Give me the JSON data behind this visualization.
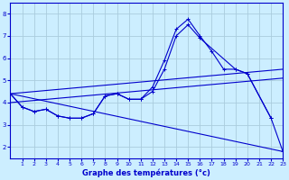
{
  "title": "Graphe des températures (°c)",
  "background_color": "#cceeff",
  "grid_color": "#aaccdd",
  "line_color": "#0000cc",
  "xlim": [
    0,
    23
  ],
  "ylim": [
    1.5,
    8.5
  ],
  "yticks": [
    2,
    3,
    4,
    5,
    6,
    7,
    8
  ],
  "xticks": [
    1,
    2,
    3,
    4,
    5,
    6,
    7,
    8,
    9,
    10,
    11,
    12,
    13,
    14,
    15,
    16,
    17,
    18,
    19,
    20,
    21,
    22,
    23
  ],
  "series_main": {
    "x": [
      0,
      1,
      2,
      3,
      4,
      5,
      6,
      7,
      8,
      9,
      10,
      11,
      12,
      13,
      14,
      15,
      16,
      17,
      18,
      19,
      20,
      22
    ],
    "y": [
      4.4,
      3.8,
      3.6,
      3.7,
      3.4,
      3.3,
      3.3,
      3.5,
      4.3,
      4.4,
      4.15,
      4.15,
      4.7,
      5.9,
      7.3,
      7.75,
      7.0,
      6.3,
      5.5,
      5.5,
      5.3,
      3.3
    ]
  },
  "series_second": {
    "x": [
      0,
      1,
      2,
      3,
      4,
      5,
      6,
      7,
      8,
      9,
      10,
      11,
      12,
      13,
      14,
      15,
      16,
      19,
      20,
      22,
      23
    ],
    "y": [
      4.4,
      3.8,
      3.6,
      3.7,
      3.4,
      3.3,
      3.3,
      3.5,
      4.3,
      4.4,
      4.15,
      4.15,
      4.5,
      5.5,
      7.0,
      7.5,
      6.9,
      5.5,
      5.3,
      3.3,
      1.8
    ]
  },
  "trend_upper": {
    "x": [
      0,
      23
    ],
    "y": [
      4.4,
      5.5
    ]
  },
  "trend_lower": {
    "x": [
      0,
      23
    ],
    "y": [
      4.4,
      1.8
    ]
  },
  "trend_mid": {
    "x": [
      0,
      23
    ],
    "y": [
      4.0,
      5.1
    ]
  }
}
